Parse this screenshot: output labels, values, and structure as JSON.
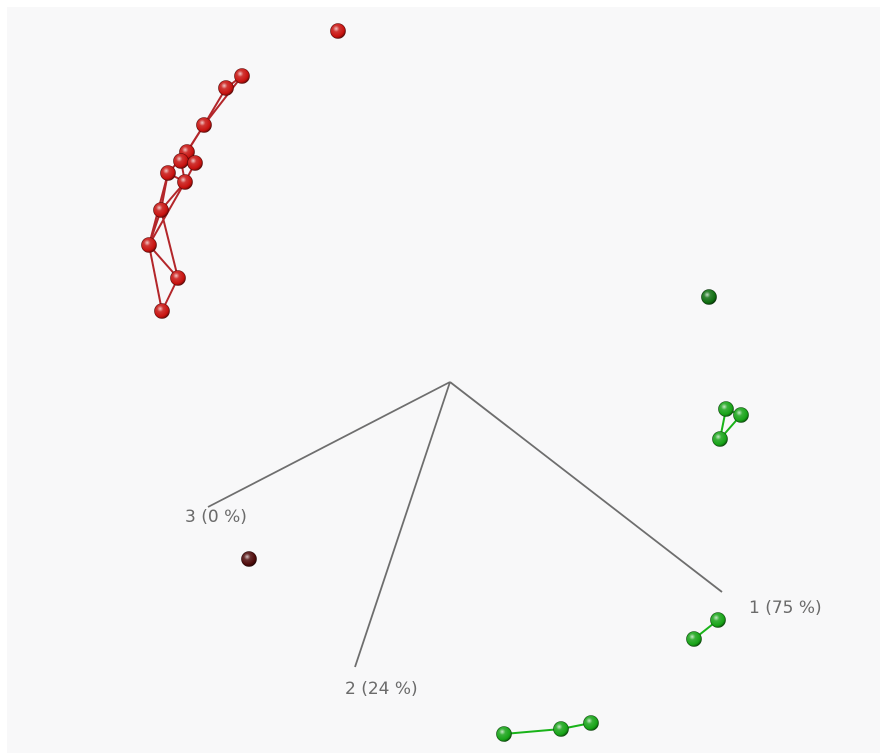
{
  "colors": {
    "background": "#f8f8f9",
    "axis": "#6e6e6e",
    "axis_label": "#6b6b6b",
    "red_sphere": "#c8120f",
    "red_link": "#b3262a",
    "green_sphere": "#17a317",
    "green_link": "#19b319",
    "dark_green_sphere": "#0f6e10",
    "dark_red_sphere": "#4e0a0a"
  },
  "chart_data": {
    "type": "scatter",
    "title": "",
    "projection": "3d",
    "axes": [
      {
        "label": "1 (75 %)"
      },
      {
        "label": "2 (24 %)"
      },
      {
        "label": "3 (0 %)"
      }
    ],
    "groups": [
      {
        "color": "red_sphere",
        "link_color": "red_link",
        "points": [
          {
            "id": "r1",
            "screen": [
              338,
              31
            ]
          },
          {
            "id": "r2",
            "screen": [
              242,
              76
            ]
          },
          {
            "id": "r3",
            "screen": [
              226,
              88
            ]
          },
          {
            "id": "r4",
            "screen": [
              204,
              125
            ]
          },
          {
            "id": "r5",
            "screen": [
              187,
              152
            ]
          },
          {
            "id": "r6",
            "screen": [
              181,
              161
            ]
          },
          {
            "id": "r7",
            "screen": [
              195,
              163
            ]
          },
          {
            "id": "r8",
            "screen": [
              168,
              173
            ]
          },
          {
            "id": "r9",
            "screen": [
              185,
              182
            ]
          },
          {
            "id": "r10",
            "screen": [
              161,
              210
            ]
          },
          {
            "id": "r11",
            "screen": [
              149,
              245
            ]
          },
          {
            "id": "r12",
            "screen": [
              178,
              278
            ]
          },
          {
            "id": "r13",
            "screen": [
              162,
              311
            ]
          }
        ],
        "links": [
          [
            "r2",
            "r3"
          ],
          [
            "r3",
            "r4"
          ],
          [
            "r2",
            "r4"
          ],
          [
            "r4",
            "r5"
          ],
          [
            "r4",
            "r6"
          ],
          [
            "r5",
            "r6"
          ],
          [
            "r6",
            "r7"
          ],
          [
            "r5",
            "r8"
          ],
          [
            "r8",
            "r9"
          ],
          [
            "r6",
            "r9"
          ],
          [
            "r7",
            "r9"
          ],
          [
            "r8",
            "r10"
          ],
          [
            "r9",
            "r10"
          ],
          [
            "r10",
            "r11"
          ],
          [
            "r8",
            "r11"
          ],
          [
            "r9",
            "r11"
          ],
          [
            "r11",
            "r12"
          ],
          [
            "r10",
            "r12"
          ],
          [
            "r11",
            "r13"
          ],
          [
            "r12",
            "r13"
          ]
        ]
      },
      {
        "color": "dark_green_sphere",
        "link_color": "green_link",
        "points": [
          {
            "id": "g1",
            "screen": [
              709,
              297
            ]
          }
        ],
        "links": []
      },
      {
        "color": "green_sphere",
        "link_color": "green_link",
        "points": [
          {
            "id": "g2",
            "screen": [
              726,
              409
            ]
          },
          {
            "id": "g3",
            "screen": [
              741,
              415
            ]
          },
          {
            "id": "g4",
            "screen": [
              720,
              439
            ]
          }
        ],
        "links": [
          [
            "g2",
            "g3"
          ],
          [
            "g3",
            "g4"
          ],
          [
            "g2",
            "g4"
          ]
        ]
      },
      {
        "color": "dark_red_sphere",
        "link_color": "red_link",
        "points": [
          {
            "id": "d1",
            "screen": [
              249,
              559
            ]
          }
        ],
        "links": []
      },
      {
        "color": "green_sphere",
        "link_color": "green_link",
        "points": [
          {
            "id": "g5",
            "screen": [
              718,
              620
            ]
          },
          {
            "id": "g6",
            "screen": [
              694,
              639
            ]
          }
        ],
        "links": [
          [
            "g5",
            "g6"
          ]
        ]
      },
      {
        "color": "green_sphere",
        "link_color": "green_link",
        "points": [
          {
            "id": "g7",
            "screen": [
              504,
              734
            ]
          },
          {
            "id": "g8",
            "screen": [
              561,
              729
            ]
          },
          {
            "id": "g9",
            "screen": [
              591,
              723
            ]
          }
        ],
        "links": [
          [
            "g7",
            "g8"
          ],
          [
            "g8",
            "g9"
          ]
        ]
      }
    ]
  }
}
